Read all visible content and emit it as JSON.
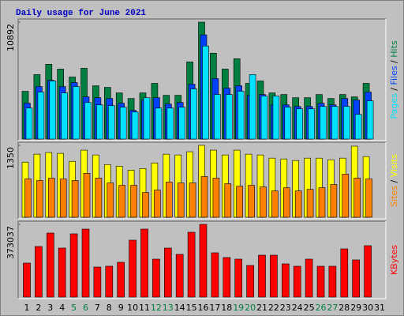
{
  "chart_data": [
    {
      "type": "bar",
      "title": "Daily usage for June 2021",
      "legend_separator": " / ",
      "ylim": [
        0,
        10892
      ],
      "yticks": [
        10892
      ],
      "series": [
        {
          "name": "Hits",
          "color": "#008040",
          "values": [
            4446,
            6002,
            6965,
            6520,
            5779,
            6595,
            4964,
            4816,
            4298,
            3779,
            4298,
            5187,
            4075,
            4075,
            7187,
            10892,
            8002,
            6520,
            7483,
            5187,
            5409,
            4298,
            4149,
            3853,
            3853,
            4149,
            3779,
            4149,
            3927,
            5187,
            null
          ]
        },
        {
          "name": "Files",
          "color": "#0040ff",
          "values": [
            3334,
            4890,
            5483,
            4890,
            5261,
            3927,
            3853,
            3779,
            3334,
            2668,
            3631,
            3853,
            3260,
            3408,
            5113,
            9707,
            5631,
            4742,
            4965,
            4075,
            4150,
            3186,
            3186,
            3038,
            3038,
            3334,
            3186,
            3779,
            3631,
            4372,
            null
          ]
        },
        {
          "name": "Pages",
          "color": "#00e0ff",
          "values": [
            2890,
            4372,
            5409,
            4298,
            4890,
            3408,
            3186,
            3112,
            2964,
            2519,
            3853,
            2890,
            2890,
            2964,
            4668,
            8670,
            4150,
            4150,
            4446,
            6002,
            4001,
            4001,
            2964,
            2816,
            2816,
            3038,
            3038,
            3038,
            2297,
            3557,
            null
          ]
        }
      ]
    },
    {
      "type": "bar",
      "legend_separator": " / ",
      "ylim": [
        0,
        1350
      ],
      "yticks": [
        1350
      ],
      "series": [
        {
          "name": "Visits",
          "color": "#ffff00",
          "values": [
            1035,
            1185,
            1215,
            1200,
            1050,
            1260,
            1170,
            990,
            960,
            885,
            915,
            1020,
            1185,
            1170,
            1230,
            1350,
            1260,
            1170,
            1260,
            1185,
            1170,
            1110,
            1095,
            1065,
            1110,
            1110,
            1080,
            1110,
            1335,
            1140,
            null
          ]
        },
        {
          "name": "Sites",
          "color": "#ff8000",
          "values": [
            720,
            690,
            735,
            720,
            690,
            825,
            735,
            645,
            600,
            600,
            465,
            510,
            660,
            645,
            645,
            765,
            735,
            630,
            585,
            600,
            570,
            495,
            555,
            495,
            525,
            555,
            615,
            810,
            735,
            720,
            null
          ]
        }
      ]
    },
    {
      "type": "bar",
      "ylim": [
        0,
        373037
      ],
      "yticks": [
        373037
      ],
      "categories": [
        "1",
        "2",
        "3",
        "4",
        "5",
        "6",
        "7",
        "8",
        "9",
        "10",
        "11",
        "12",
        "13",
        "14",
        "15",
        "16",
        "17",
        "18",
        "19",
        "20",
        "21",
        "22",
        "23",
        "24",
        "25",
        "26",
        "27",
        "28",
        "29",
        "30",
        "31"
      ],
      "category_colors": [
        "#000",
        "#000",
        "#000",
        "#000",
        "#008040",
        "#008040",
        "#000",
        "#000",
        "#000",
        "#000",
        "#000",
        "#008040",
        "#008040",
        "#000",
        "#000",
        "#000",
        "#000",
        "#000",
        "#008040",
        "#008040",
        "#000",
        "#000",
        "#000",
        "#000",
        "#000",
        "#008040",
        "#008040",
        "#000",
        "#000",
        "#000",
        "#000"
      ],
      "series": [
        {
          "name": "KBytes",
          "color": "#ff0000",
          "values": [
            174365,
            259520,
            328455,
            251410,
            324400,
            348730,
            154090,
            158145,
            178420,
            291960,
            348730,
            194640,
            251410,
            218970,
            332510,
            373037,
            227080,
            202750,
            194640,
            162200,
            214915,
            214915,
            170310,
            158145,
            194640,
            158145,
            158145,
            247355,
            190585,
            263575,
            null
          ]
        }
      ]
    }
  ]
}
